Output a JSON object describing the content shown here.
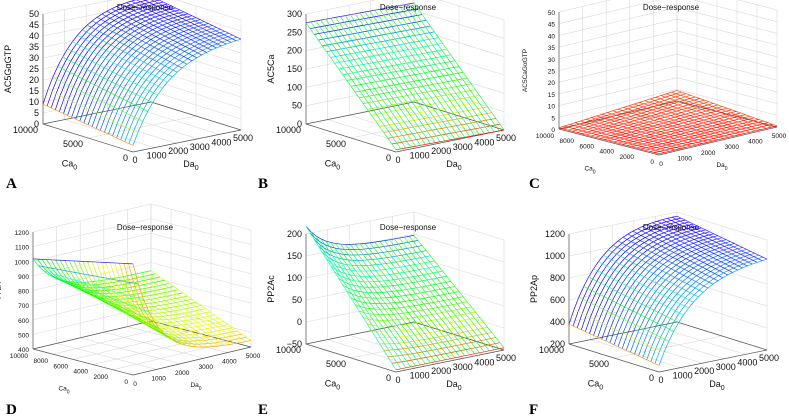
{
  "chart_data": [
    {
      "id": "A",
      "type": "surface",
      "letter": "A",
      "title": "Dose−response",
      "zlabel": "AC5GαGTP",
      "xlabel": "Ca",
      "ylabel": "Da",
      "sub": "0",
      "zticks": [
        "0",
        "5",
        "10",
        "15",
        "20",
        "25",
        "30",
        "35",
        "40",
        "45",
        "50"
      ],
      "caticks": [
        "0",
        "5000",
        "10000"
      ],
      "daticks": [
        "0",
        "1000",
        "2000",
        "3000",
        "4000",
        "5000"
      ],
      "zlim": [
        0,
        50
      ],
      "corner_values": {
        "Ca0_Da0": 3,
        "Ca10000_Da0": 11,
        "Ca0_Da5000": 40,
        "Ca10000_Da5000": 48
      },
      "shape": "rise"
    },
    {
      "id": "B",
      "type": "surface",
      "letter": "B",
      "title": "Dose−response",
      "zlabel": "AC5Ca",
      "xlabel": "Ca",
      "ylabel": "Da",
      "sub": "0",
      "zticks": [
        "0",
        "50",
        "100",
        "150",
        "200",
        "250",
        "300"
      ],
      "caticks": [
        "0",
        "5000",
        "10000"
      ],
      "daticks": [
        "0",
        "1000",
        "2000",
        "3000",
        "4000",
        "5000"
      ],
      "zlim": [
        0,
        300
      ],
      "corner_values": {
        "Ca0_Da0": 5,
        "Ca10000_Da0": 275,
        "Ca0_Da5000": 5,
        "Ca10000_Da5000": 270
      },
      "shape": "linear"
    },
    {
      "id": "C",
      "type": "surface",
      "letter": "C",
      "title": "Dose−response",
      "zlabel": "AC5CaGαGTP",
      "xlabel": "Ca",
      "ylabel": "Da",
      "sub": "0",
      "zticks": [
        "0",
        "5",
        "10",
        "15",
        "20",
        "25",
        "30",
        "35",
        "40",
        "45",
        "50"
      ],
      "caticks": [
        "0",
        "2000",
        "4000",
        "6000",
        "8000",
        "10000"
      ],
      "daticks": [
        "0",
        "1000",
        "2000",
        "3000",
        "4000",
        "5000"
      ],
      "zlim": [
        0,
        50
      ],
      "corner_values": {
        "Ca0_Da0": 0,
        "Ca10000_Da0": 0,
        "Ca0_Da5000": 1,
        "Ca10000_Da5000": 4
      },
      "shape": "flat"
    },
    {
      "id": "D",
      "type": "surface",
      "letter": "D",
      "title": "Dose−response",
      "zlabel": "PP2A",
      "xlabel": "Ca",
      "ylabel": "Da",
      "sub": "0",
      "zticks": [
        "400",
        "500",
        "600",
        "700",
        "800",
        "900",
        "1000",
        "1100",
        "1200"
      ],
      "caticks": [
        "0",
        "2000",
        "4000",
        "6000",
        "8000",
        "10000"
      ],
      "daticks": [
        "0",
        "1000",
        "2000",
        "3000",
        "4000",
        "5000"
      ],
      "zlim": [
        400,
        1200
      ],
      "corner_values": {
        "Ca0_Da0": 1100,
        "Ca10000_Da0": 1150,
        "Ca0_Da5000": 450,
        "Ca10000_Da5000": 800
      },
      "shape": "fall"
    },
    {
      "id": "E",
      "type": "surface",
      "letter": "E",
      "title": "Dose−response",
      "zlabel": "PP2Ac",
      "xlabel": "Ca",
      "ylabel": "Da",
      "sub": "0",
      "zticks": [
        "−50",
        "0",
        "50",
        "100",
        "150",
        "200"
      ],
      "caticks": [
        "0",
        "5000",
        "10000"
      ],
      "daticks": [
        "0",
        "1000",
        "2000",
        "3000",
        "4000",
        "5000"
      ],
      "zlim": [
        -50,
        200
      ],
      "corner_values": {
        "Ca0_Da0": -45,
        "Ca10000_Da0": 180,
        "Ca0_Da5000": -40,
        "Ca10000_Da5000": 150
      },
      "shape": "dip"
    },
    {
      "id": "F",
      "type": "surface",
      "letter": "F",
      "title": "Dose−response",
      "zlabel": "PP2Ap",
      "xlabel": "Ca",
      "ylabel": "Da",
      "sub": "0",
      "zticks": [
        "200",
        "400",
        "600",
        "800",
        "1000",
        "1200"
      ],
      "caticks": [
        "0",
        "5000",
        "10000"
      ],
      "daticks": [
        "0",
        "1000",
        "2000",
        "3000",
        "4000",
        "5000"
      ],
      "zlim": [
        200,
        1200
      ],
      "corner_values": {
        "Ca0_Da0": 220,
        "Ca10000_Da0": 300,
        "Ca0_Da5000": 1150,
        "Ca10000_Da5000": 1200
      },
      "shape": "rise"
    }
  ]
}
